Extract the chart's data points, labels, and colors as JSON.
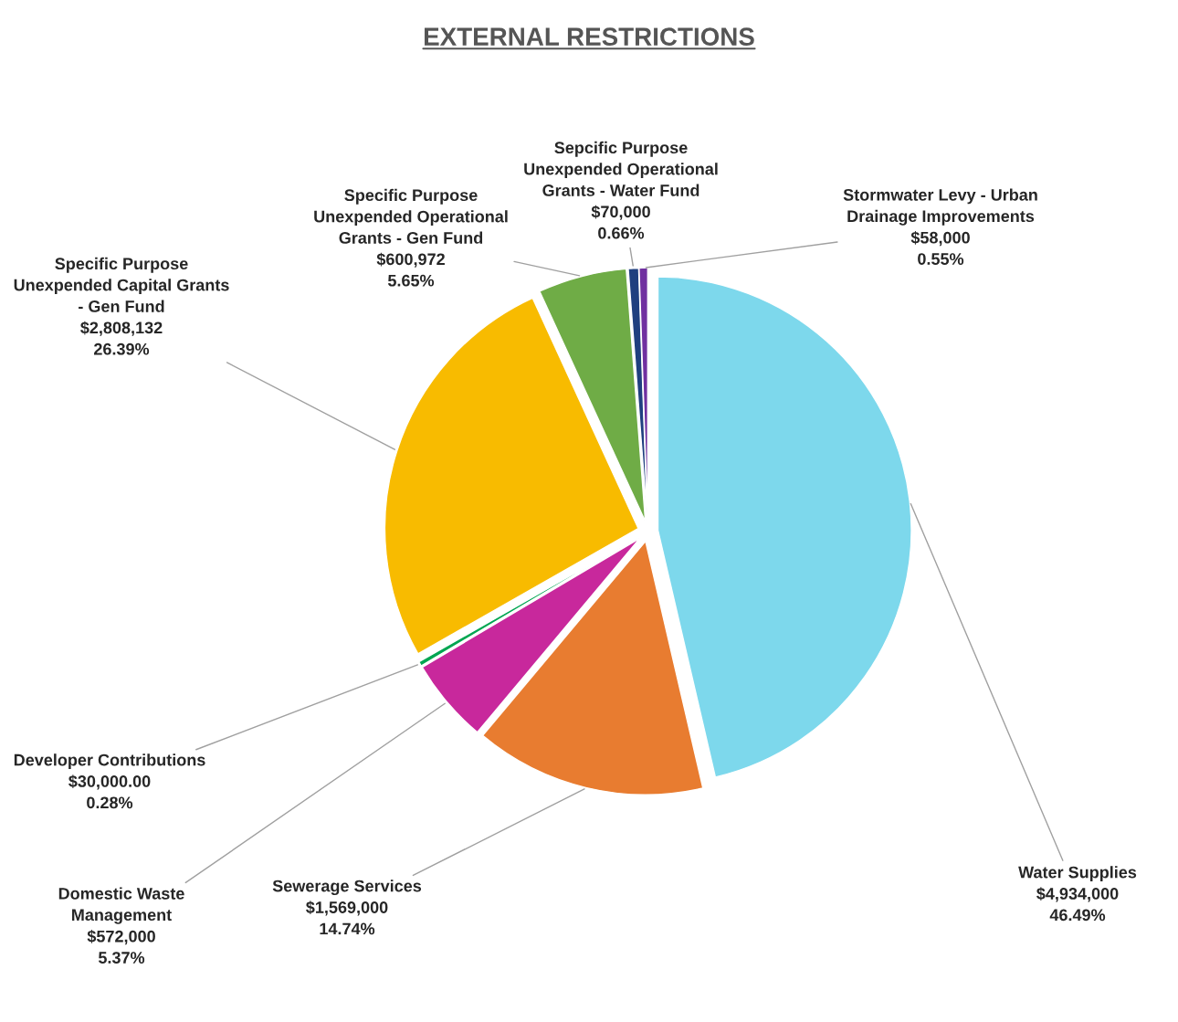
{
  "chart_data": {
    "type": "pie",
    "title": "EXTERNAL RESTRICTIONS",
    "categories": [
      "Water Supplies",
      "Sewerage Services",
      "Domestic Waste\nManagement",
      "Developer Contributions",
      "Specific Purpose\nUnexpended Capital Grants\n- Gen Fund",
      "Specific Purpose\nUnexpended Operational\nGrants - Gen Fund",
      "Sepcific Purpose\nUnexpended Operational\nGrants - Water Fund",
      "Stormwater Levy - Urban\nDrainage Improvements"
    ],
    "values": [
      4934000,
      1569000,
      572000,
      30000,
      2808132,
      600972,
      70000,
      58000
    ],
    "value_labels": [
      "$4,934,000\n46.49%",
      "$1,569,000\n14.74%",
      "$572,000\n5.37%",
      "$30,000.00\n0.28%",
      "$2,808,132\n26.39%",
      "$600,972\n5.65%",
      "$70,000\n0.66%",
      "$58,000\n0.55%"
    ],
    "colors": [
      "#7dd8ec",
      "#e87c30",
      "#c8289c",
      "#00a651",
      "#f8bb00",
      "#6fac46",
      "#1f3f7f",
      "#7030a0"
    ],
    "legend": false
  }
}
